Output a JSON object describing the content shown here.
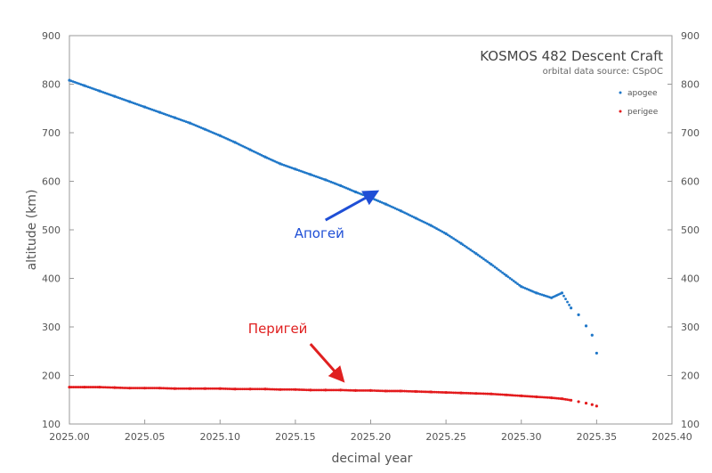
{
  "chart_data": {
    "type": "scatter",
    "title": "KOSMOS 482 Descent Craft",
    "subtitle": "orbital data source:  CSpOC",
    "xlabel": "decimal year",
    "ylabel": "altitude (km)",
    "xlim": [
      2025.0,
      2025.4
    ],
    "ylim": [
      100,
      900
    ],
    "x_ticks": [
      "2025.00",
      "2025.05",
      "2025.10",
      "2025.15",
      "2025.20",
      "2025.25",
      "2025.30",
      "2025.35",
      "2025.40"
    ],
    "y_ticks": [
      "100",
      "200",
      "300",
      "400",
      "500",
      "600",
      "700",
      "800",
      "900"
    ],
    "y_ticks_right": [
      "100",
      "200",
      "300",
      "400",
      "500",
      "600",
      "700",
      "800",
      "900"
    ],
    "grid": false,
    "legend_position": "top-right",
    "series": [
      {
        "name": "apogee",
        "color": "#1f77c8",
        "points": [
          [
            2025.0,
            808
          ],
          [
            2025.01,
            797
          ],
          [
            2025.02,
            786
          ],
          [
            2025.03,
            775
          ],
          [
            2025.04,
            764
          ],
          [
            2025.05,
            753
          ],
          [
            2025.06,
            742
          ],
          [
            2025.07,
            731
          ],
          [
            2025.08,
            720
          ],
          [
            2025.09,
            707
          ],
          [
            2025.1,
            694
          ],
          [
            2025.11,
            680
          ],
          [
            2025.12,
            665
          ],
          [
            2025.13,
            650
          ],
          [
            2025.14,
            636
          ],
          [
            2025.15,
            625
          ],
          [
            2025.16,
            614
          ],
          [
            2025.17,
            603
          ],
          [
            2025.18,
            591
          ],
          [
            2025.19,
            578
          ],
          [
            2025.2,
            566
          ],
          [
            2025.21,
            553
          ],
          [
            2025.22,
            539
          ],
          [
            2025.23,
            524
          ],
          [
            2025.24,
            509
          ],
          [
            2025.25,
            492
          ],
          [
            2025.26,
            472
          ],
          [
            2025.27,
            451
          ],
          [
            2025.28,
            429
          ],
          [
            2025.29,
            406
          ],
          [
            2025.3,
            383
          ],
          [
            2025.31,
            370
          ],
          [
            2025.32,
            360
          ],
          [
            2025.327,
            370
          ],
          [
            2025.333,
            339
          ],
          [
            2025.338,
            325
          ],
          [
            2025.343,
            302
          ],
          [
            2025.347,
            283
          ],
          [
            2025.35,
            246
          ]
        ]
      },
      {
        "name": "perigee",
        "color": "#e31a1c",
        "points": [
          [
            2025.0,
            176
          ],
          [
            2025.01,
            176
          ],
          [
            2025.02,
            176
          ],
          [
            2025.03,
            175
          ],
          [
            2025.04,
            174
          ],
          [
            2025.05,
            174
          ],
          [
            2025.06,
            174
          ],
          [
            2025.07,
            173
          ],
          [
            2025.08,
            173
          ],
          [
            2025.09,
            173
          ],
          [
            2025.1,
            173
          ],
          [
            2025.11,
            172
          ],
          [
            2025.12,
            172
          ],
          [
            2025.13,
            172
          ],
          [
            2025.14,
            171
          ],
          [
            2025.15,
            171
          ],
          [
            2025.16,
            170
          ],
          [
            2025.17,
            170
          ],
          [
            2025.18,
            170
          ],
          [
            2025.19,
            169
          ],
          [
            2025.2,
            169
          ],
          [
            2025.21,
            168
          ],
          [
            2025.22,
            168
          ],
          [
            2025.23,
            167
          ],
          [
            2025.24,
            166
          ],
          [
            2025.25,
            165
          ],
          [
            2025.26,
            164
          ],
          [
            2025.27,
            163
          ],
          [
            2025.28,
            162
          ],
          [
            2025.29,
            160
          ],
          [
            2025.3,
            158
          ],
          [
            2025.31,
            156
          ],
          [
            2025.32,
            154
          ],
          [
            2025.327,
            152
          ],
          [
            2025.333,
            149
          ],
          [
            2025.338,
            146
          ],
          [
            2025.343,
            143
          ],
          [
            2025.347,
            140
          ],
          [
            2025.35,
            137
          ]
        ]
      }
    ],
    "annotations": [
      {
        "text": "Апогей",
        "color": "#1f4fd6",
        "arrow_from": [
          2025.17,
          520
        ],
        "arrow_to": [
          2025.202,
          575
        ]
      },
      {
        "text": "Перигей",
        "color": "#e02020",
        "arrow_from": [
          2025.16,
          265
        ],
        "arrow_to": [
          2025.18,
          195
        ]
      }
    ]
  }
}
